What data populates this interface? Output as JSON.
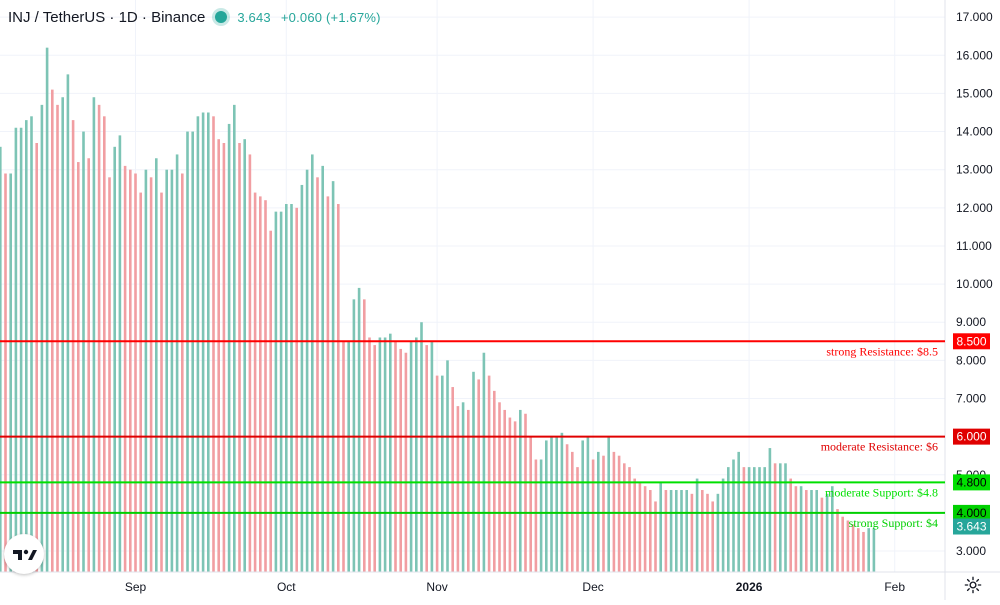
{
  "header": {
    "symbol": "INJ / TetherUS · 1D · Binance",
    "price": "3.643",
    "change": "+0.060 (+1.67%)"
  },
  "chart_data": {
    "type": "bar",
    "timeframe": "1D",
    "y_range": [
      2.45,
      17.45
    ],
    "y_ticks": [
      "3.000",
      "4.000",
      "5.000",
      "6.000",
      "7.000",
      "8.000",
      "9.000",
      "10.000",
      "11.000",
      "12.000",
      "13.000",
      "14.000",
      "15.000",
      "16.000",
      "17.000"
    ],
    "x_ticks": [
      "Sep",
      "Oct",
      "Nov",
      "Dec",
      "2026",
      "Feb"
    ],
    "up_color": "#7dc4b5",
    "down_color": "#f19ea2",
    "series": [
      {
        "values": [
          13.6,
          12.9,
          12.9,
          14.1,
          14.1,
          14.3,
          14.4,
          13.7,
          14.7,
          16.2,
          15.1,
          14.7,
          14.9,
          15.5,
          14.3,
          13.2,
          14.0,
          13.3,
          14.9,
          14.7,
          14.4,
          12.8,
          13.6,
          13.9,
          13.1,
          13.0,
          12.9,
          12.4,
          13.0,
          12.8,
          13.3,
          12.4,
          13.0,
          13.0,
          13.4,
          12.9,
          14.0,
          14.0,
          14.4,
          14.5,
          14.5,
          14.4,
          13.8,
          13.7,
          14.2,
          14.7,
          13.7,
          13.8,
          13.4,
          12.4,
          12.3,
          12.2,
          11.4,
          11.9,
          11.9,
          12.1,
          12.1,
          12.0,
          12.6,
          13.0,
          13.4,
          12.8,
          13.1,
          12.3,
          12.7,
          12.1,
          8.5,
          8.5,
          9.6,
          9.9,
          9.6,
          8.6,
          8.4,
          8.6,
          8.6,
          8.7,
          8.5,
          8.3,
          8.2,
          8.5,
          8.6,
          9.0,
          8.4,
          8.5,
          7.6,
          7.6,
          8.0,
          7.3,
          6.8,
          6.9,
          6.7,
          7.7,
          7.5,
          8.2,
          7.6,
          7.2,
          6.9,
          6.7,
          6.5,
          6.4,
          6.7,
          6.6,
          6.0,
          5.4,
          5.4,
          5.9,
          6.0,
          6.0,
          6.1,
          5.8,
          5.6,
          5.2,
          5.9,
          6.0,
          5.4,
          5.6,
          5.5,
          6.0,
          5.6,
          5.5,
          5.3,
          5.2,
          4.9,
          4.8,
          4.7,
          4.6,
          4.3,
          4.8,
          4.6,
          4.6,
          4.6,
          4.6,
          4.6,
          4.5,
          4.9,
          4.6,
          4.5,
          4.3,
          4.5,
          4.9,
          5.2,
          5.4,
          5.6,
          5.2,
          5.2,
          5.2,
          5.2,
          5.2,
          5.7,
          5.3,
          5.3,
          5.3,
          4.9,
          4.7,
          4.7,
          4.6,
          4.6,
          4.6,
          4.4,
          4.5,
          4.7,
          4.1,
          3.9,
          3.8,
          3.7,
          3.6,
          3.5,
          3.6,
          3.6
        ]
      }
    ]
  },
  "levels": [
    {
      "label": "strong Resistance: $8.5",
      "tag": "8.500",
      "color": "#ff0000",
      "value": 8.5
    },
    {
      "label": "moderate Resistance: $6",
      "tag": "6.000",
      "color": "#e00000",
      "value": 6.0
    },
    {
      "label": "moderate Support: $4.8",
      "tag": "4.800",
      "color": "#00e000",
      "value": 4.8
    },
    {
      "label": "strong Support: $4",
      "tag": "4.000",
      "color": "#00d000",
      "value": 4.0
    }
  ],
  "current_price_tag": "3.643",
  "current_price_color": "#26a69a"
}
